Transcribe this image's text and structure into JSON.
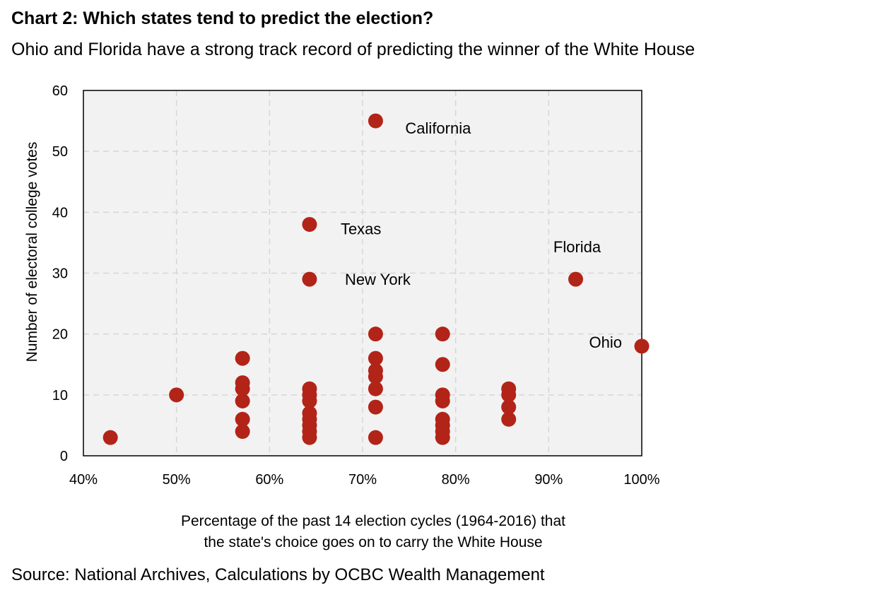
{
  "title": "Chart 2: Which states tend to predict the election?",
  "subtitle": "Ohio and Florida have a strong track record of predicting the winner of the White House",
  "source": "Source: National Archives, Calculations by OCBC Wealth Management",
  "chart_data": {
    "type": "scatter",
    "xlabel_lines": [
      "Percentage of the past 14 election cycles (1964-2016) that",
      "the state's choice goes on to carry the White House"
    ],
    "ylabel": "Number of electoral college votes",
    "xlim": [
      0.4,
      1.0
    ],
    "ylim": [
      0,
      60
    ],
    "x_ticks": [
      {
        "value": 0.4,
        "label": "40%"
      },
      {
        "value": 0.5,
        "label": "50%"
      },
      {
        "value": 0.6,
        "label": "60%"
      },
      {
        "value": 0.7,
        "label": "70%"
      },
      {
        "value": 0.8,
        "label": "80%"
      },
      {
        "value": 0.9,
        "label": "90%"
      },
      {
        "value": 1.0,
        "label": "100%"
      }
    ],
    "y_ticks": [
      {
        "value": 0,
        "label": "0"
      },
      {
        "value": 10,
        "label": "10"
      },
      {
        "value": 20,
        "label": "20"
      },
      {
        "value": 30,
        "label": "30"
      },
      {
        "value": 40,
        "label": "40"
      },
      {
        "value": 50,
        "label": "50"
      },
      {
        "value": 60,
        "label": "60"
      }
    ],
    "grid": true,
    "marker_color": "#b22418",
    "plot_background": "#f2f2f2",
    "points": [
      {
        "x": 0.429,
        "y": 3
      },
      {
        "x": 0.5,
        "y": 10
      },
      {
        "x": 0.571,
        "y": 16
      },
      {
        "x": 0.571,
        "y": 12
      },
      {
        "x": 0.571,
        "y": 11
      },
      {
        "x": 0.571,
        "y": 9
      },
      {
        "x": 0.571,
        "y": 6
      },
      {
        "x": 0.571,
        "y": 4
      },
      {
        "x": 0.643,
        "y": 38
      },
      {
        "x": 0.643,
        "y": 29
      },
      {
        "x": 0.643,
        "y": 11
      },
      {
        "x": 0.643,
        "y": 10
      },
      {
        "x": 0.643,
        "y": 9
      },
      {
        "x": 0.643,
        "y": 7
      },
      {
        "x": 0.643,
        "y": 6
      },
      {
        "x": 0.643,
        "y": 5
      },
      {
        "x": 0.643,
        "y": 4
      },
      {
        "x": 0.643,
        "y": 3
      },
      {
        "x": 0.714,
        "y": 55
      },
      {
        "x": 0.714,
        "y": 20
      },
      {
        "x": 0.714,
        "y": 16
      },
      {
        "x": 0.714,
        "y": 14
      },
      {
        "x": 0.714,
        "y": 13
      },
      {
        "x": 0.714,
        "y": 11
      },
      {
        "x": 0.714,
        "y": 8
      },
      {
        "x": 0.714,
        "y": 3
      },
      {
        "x": 0.786,
        "y": 20
      },
      {
        "x": 0.786,
        "y": 15
      },
      {
        "x": 0.786,
        "y": 10
      },
      {
        "x": 0.786,
        "y": 9
      },
      {
        "x": 0.786,
        "y": 6
      },
      {
        "x": 0.786,
        "y": 5
      },
      {
        "x": 0.786,
        "y": 4
      },
      {
        "x": 0.786,
        "y": 3
      },
      {
        "x": 0.857,
        "y": 11
      },
      {
        "x": 0.857,
        "y": 10
      },
      {
        "x": 0.857,
        "y": 8
      },
      {
        "x": 0.857,
        "y": 6
      },
      {
        "x": 0.929,
        "y": 29
      },
      {
        "x": 1.0,
        "y": 18
      }
    ],
    "annotations": [
      {
        "text": "California",
        "x": 0.714,
        "y": 55
      },
      {
        "text": "Texas",
        "x": 0.643,
        "y": 38
      },
      {
        "text": "New York",
        "x": 0.643,
        "y": 29
      },
      {
        "text": "Florida",
        "x": 0.929,
        "y": 29
      },
      {
        "text": "Ohio",
        "x": 1.0,
        "y": 18
      }
    ]
  }
}
